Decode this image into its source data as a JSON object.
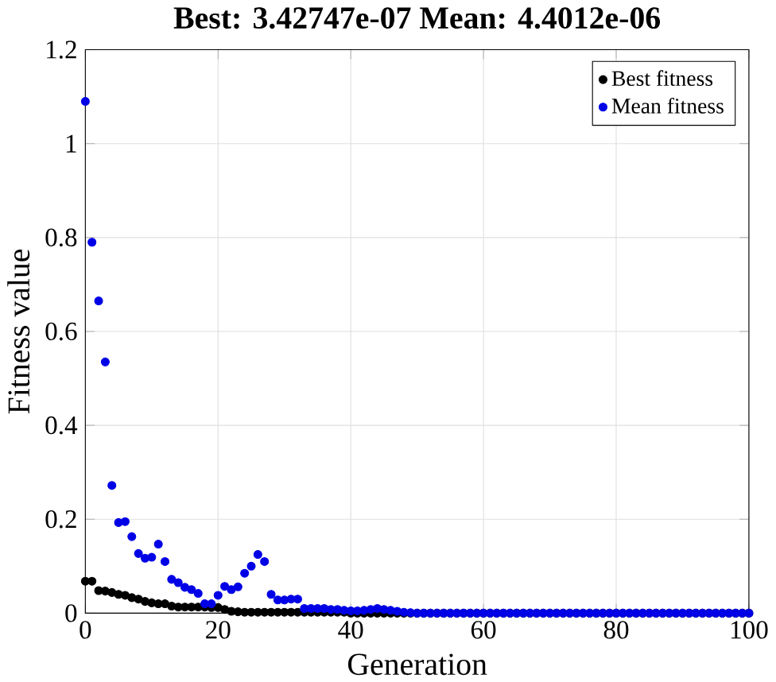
{
  "chart_data": {
    "type": "scatter",
    "title": "Best: 3.42747e-07 Mean: 4.4012e-06",
    "xlabel": "Generation",
    "ylabel": "Fitness value",
    "x": [
      0,
      1,
      2,
      3,
      4,
      5,
      6,
      7,
      8,
      9,
      10,
      11,
      12,
      13,
      14,
      15,
      16,
      17,
      18,
      19,
      20,
      21,
      22,
      23,
      24,
      25,
      26,
      27,
      28,
      29,
      30,
      31,
      32,
      33,
      34,
      35,
      36,
      37,
      38,
      39,
      40,
      41,
      42,
      43,
      44,
      45,
      46,
      47,
      48,
      49,
      50,
      51,
      52,
      53,
      54,
      55,
      56,
      57,
      58,
      59,
      60,
      61,
      62,
      63,
      64,
      65,
      66,
      67,
      68,
      69,
      70,
      71,
      72,
      73,
      74,
      75,
      76,
      77,
      78,
      79,
      80,
      81,
      82,
      83,
      84,
      85,
      86,
      87,
      88,
      89,
      90,
      91,
      92,
      93,
      94,
      95,
      96,
      97,
      98,
      99,
      100
    ],
    "series": [
      {
        "name": "Best fitness",
        "color": "#000000",
        "values": [
          0.068,
          0.068,
          0.048,
          0.047,
          0.044,
          0.04,
          0.038,
          0.033,
          0.03,
          0.025,
          0.022,
          0.02,
          0.02,
          0.015,
          0.013,
          0.013,
          0.013,
          0.013,
          0.013,
          0.012,
          0.012,
          0.008,
          0.004,
          0.003,
          0.002,
          0.002,
          0.002,
          0.002,
          0.002,
          0.002,
          0.002,
          0.002,
          0.002,
          0.002,
          0.002,
          0.002,
          0.002,
          0.002,
          0.002,
          0.002,
          0,
          0,
          0,
          0,
          0,
          0,
          0,
          0,
          0,
          0,
          0,
          0,
          0,
          0,
          0,
          0,
          0,
          0,
          0,
          0,
          0,
          0,
          0,
          0,
          0,
          0,
          0,
          0,
          0,
          0,
          0,
          0,
          0,
          0,
          0,
          0,
          0,
          0,
          0,
          0,
          0,
          0,
          0,
          0,
          0,
          0,
          0,
          0,
          0,
          0,
          0,
          0,
          0,
          0,
          0,
          0,
          0,
          0,
          0,
          0,
          0
        ]
      },
      {
        "name": "Mean fitness",
        "color": "#0000e6",
        "values": [
          1.09,
          0.79,
          0.665,
          0.535,
          0.272,
          0.193,
          0.195,
          0.163,
          0.127,
          0.117,
          0.119,
          0.147,
          0.11,
          0.072,
          0.065,
          0.055,
          0.05,
          0.042,
          0.02,
          0.02,
          0.038,
          0.057,
          0.05,
          0.056,
          0.085,
          0.1,
          0.125,
          0.11,
          0.04,
          0.028,
          0.028,
          0.03,
          0.03,
          0.01,
          0.01,
          0.01,
          0.01,
          0.008,
          0.008,
          0.006,
          0.005,
          0.005,
          0.006,
          0.008,
          0.01,
          0.008,
          0.006,
          0.004,
          0.002,
          0.001,
          0,
          0,
          0,
          0,
          0,
          0,
          0,
          0,
          0,
          0,
          0,
          0,
          0,
          0,
          0,
          0,
          0,
          0,
          0,
          0,
          0,
          0,
          0,
          0,
          0,
          0,
          0,
          0,
          0,
          0,
          0,
          0,
          0,
          0,
          0,
          0,
          0,
          0,
          0,
          0,
          0,
          0,
          0,
          0,
          0,
          0,
          0,
          0,
          0,
          0,
          0
        ]
      }
    ],
    "xlim": [
      0,
      100
    ],
    "ylim": [
      0,
      1.2
    ],
    "xticks": [
      0,
      20,
      40,
      60,
      80,
      100
    ],
    "yticks": [
      0,
      0.2,
      0.4,
      0.6,
      0.8,
      1,
      1.2
    ],
    "grid": true,
    "legend": "top right",
    "marker": "circle"
  }
}
